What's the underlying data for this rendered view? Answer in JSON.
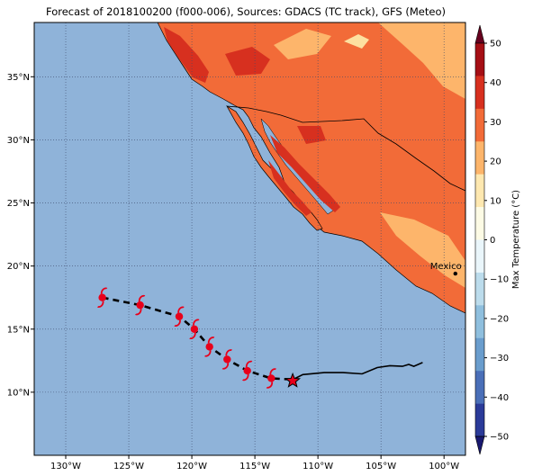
{
  "title": "Forecast of 2018100200 (f000-006), Sources: GDACS (TC track), GFS (Meteo)",
  "colors": {
    "ocean": "#8fb3d9",
    "land_warm": "#f26b38",
    "land_hot": "#d7301f",
    "land_mild": "#fdb56b",
    "land_pale": "#fde0a0",
    "track_forecast": "#000000",
    "cyclone_symbol": "#e8001b",
    "current_position": "#e8001b"
  },
  "map": {
    "lon_range": [
      -132.5,
      -98.3
    ],
    "lat_range": [
      5.0,
      39.3
    ],
    "lon_ticks": [
      "130°W",
      "125°W",
      "120°W",
      "115°W",
      "110°W",
      "105°W",
      "100°W"
    ],
    "lat_ticks": [
      "10°N",
      "15°N",
      "20°N",
      "25°N",
      "30°N",
      "35°N"
    ],
    "grid": true,
    "city": {
      "name": "Mexico Cit",
      "lon": -99.1,
      "lat": 19.4
    }
  },
  "track": {
    "past": [
      [
        -111.8,
        11.1
      ],
      [
        -111.2,
        11.4
      ],
      [
        -109.5,
        11.55
      ],
      [
        -108.0,
        11.55
      ],
      [
        -106.5,
        11.45
      ],
      [
        -105.3,
        11.95
      ],
      [
        -104.3,
        12.1
      ],
      [
        -103.3,
        12.05
      ],
      [
        -102.8,
        12.2
      ],
      [
        -102.4,
        12.05
      ],
      [
        -101.7,
        12.35
      ]
    ],
    "forecast": [
      [
        -127.1,
        17.5
      ],
      [
        -124.1,
        16.9
      ],
      [
        -121.0,
        16.0
      ],
      [
        -119.8,
        15.0
      ],
      [
        -118.6,
        13.6
      ],
      [
        -117.2,
        12.6
      ],
      [
        -115.6,
        11.7
      ],
      [
        -113.7,
        11.1
      ],
      [
        -111.8,
        11.0
      ]
    ],
    "current": [
      -112.0,
      10.9
    ]
  },
  "colorbar": {
    "label": "Max Temperature (°C)",
    "ticks": [
      "50",
      "40",
      "30",
      "20",
      "10",
      "0",
      "−10",
      "−20",
      "−30",
      "−40",
      "−50"
    ],
    "colors": [
      "#67001f",
      "#a50f15",
      "#d7301f",
      "#f26b38",
      "#fdb56b",
      "#fee8b0",
      "#fdfbe5",
      "#eaf6fb",
      "#bcdcec",
      "#8fbfde",
      "#6a9dcd",
      "#4a6fb8",
      "#2b3b99",
      "#191970"
    ]
  }
}
